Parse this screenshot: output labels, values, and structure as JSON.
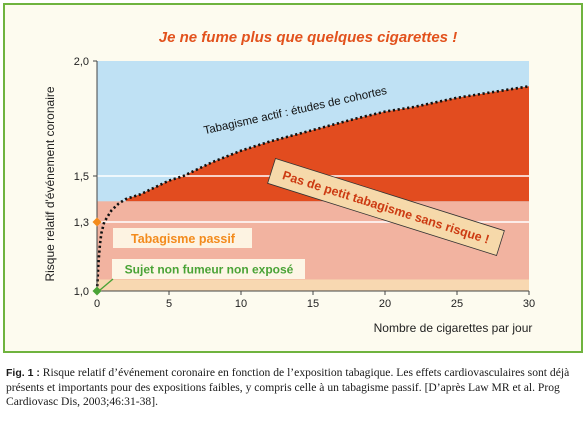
{
  "colors": {
    "frame": "#6fb33e",
    "plot_blue": "#bfe1f4",
    "plot_red": "#e24c1f",
    "plot_pink": "#f2b3a0",
    "plot_cream": "#f8d8b1",
    "title": "#e2521d",
    "passive_label": "#f38b1c",
    "nonsmoker_label": "#4aa336",
    "banner_fill": "#f6d9aa",
    "banner_text": "#cc3a12"
  },
  "chart_data": {
    "type": "area",
    "title": "Je ne fume plus que quelques cigarettes !",
    "xlabel": "Nombre de cigarettes par jour",
    "ylabel": "Risque relatif d'événement coronaire",
    "xlim": [
      0,
      30
    ],
    "ylim": [
      1.0,
      2.0
    ],
    "xticks": [
      0,
      5,
      10,
      15,
      20,
      25,
      30
    ],
    "xtick_labels": [
      "0",
      "5",
      "10",
      "15",
      "20",
      "25",
      "30"
    ],
    "yticks": [
      1.0,
      1.3,
      1.5,
      2.0
    ],
    "ytick_labels": [
      "1,0",
      "1,3",
      "1,5",
      "2,0"
    ],
    "gridlines_y": [
      1.3,
      1.5
    ],
    "bands": [
      {
        "from": 1.0,
        "to": 1.05,
        "color": "#f8d8b1"
      },
      {
        "from": 1.05,
        "to": 1.39,
        "color": "#f2b3a0"
      },
      {
        "from": 1.39,
        "to": 2.0,
        "color": "#e24c1f",
        "under_curve": true
      }
    ],
    "series": [
      {
        "name": "Tabagisme actif : études de cohortes",
        "style": "dotted",
        "x": [
          0,
          0.1,
          0.2,
          0.3,
          0.5,
          0.7,
          1,
          1.5,
          2,
          3,
          4,
          5,
          6,
          8,
          10,
          12,
          15,
          18,
          20,
          22,
          25,
          28,
          30
        ],
        "y": [
          1.0,
          1.12,
          1.2,
          1.25,
          1.3,
          1.32,
          1.35,
          1.38,
          1.4,
          1.42,
          1.45,
          1.48,
          1.5,
          1.56,
          1.61,
          1.65,
          1.7,
          1.75,
          1.78,
          1.8,
          1.84,
          1.87,
          1.89
        ]
      }
    ],
    "points": [
      {
        "x": 0,
        "y": 1.3,
        "color": "#f38b1c"
      },
      {
        "x": 0,
        "y": 1.0,
        "color": "#4aa336"
      }
    ],
    "annotations": {
      "curve_label": "Tabagisme actif : études de cohortes",
      "passive": "Tabagisme passif",
      "nonsmoker": "Sujet non fumeur non exposé",
      "banner": "Pas de petit tabagisme sans risque !"
    }
  },
  "caption": {
    "label": "Fig. 1 :",
    "text": "Risque relatif d’événement coronaire en fonction de l’exposition tabagique. Les effets cardiovasculaires sont déjà présents et importants pour des expositions faibles, y compris celle à un tabagisme passif. [D’après Law MR et al. Prog Cardiovasc Dis, 2003;46:31-38]."
  }
}
